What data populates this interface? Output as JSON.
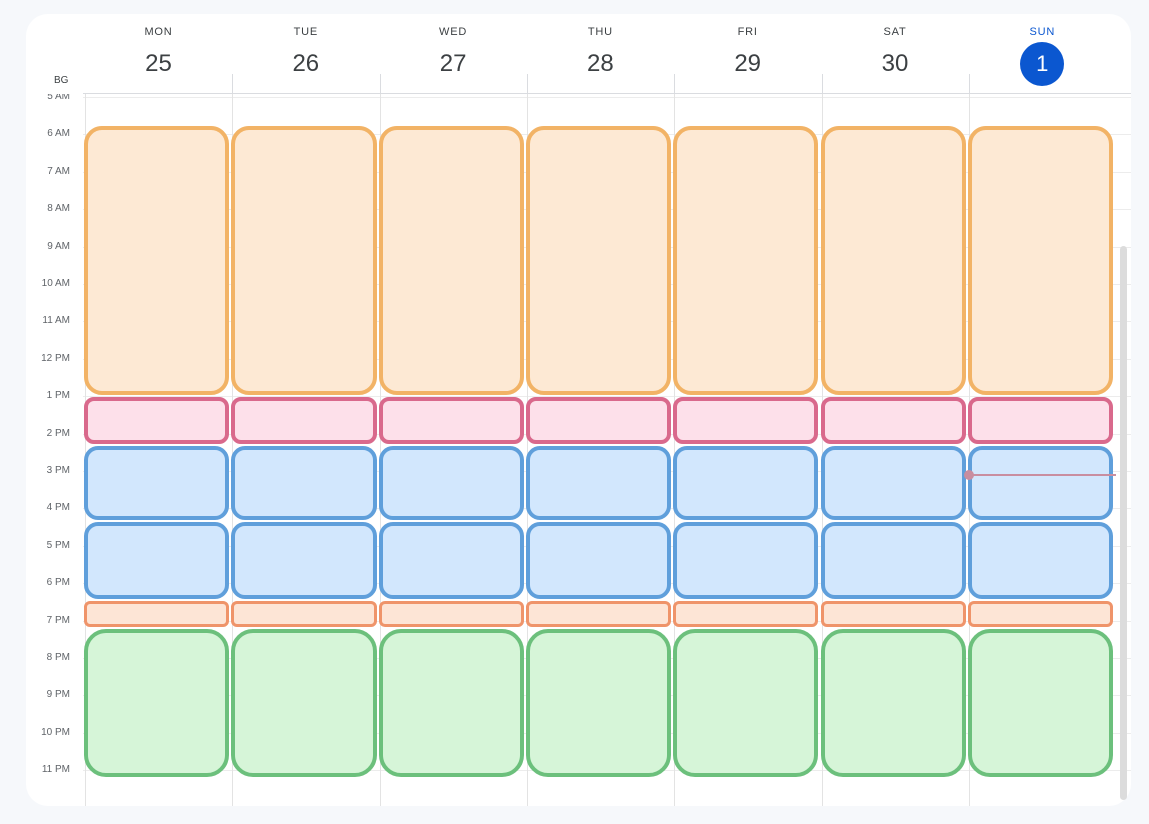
{
  "timezone_label": "BG",
  "days": [
    {
      "name": "MON",
      "number": "25",
      "today": false
    },
    {
      "name": "TUE",
      "number": "26",
      "today": false
    },
    {
      "name": "WED",
      "number": "27",
      "today": false
    },
    {
      "name": "THU",
      "number": "28",
      "today": false
    },
    {
      "name": "FRI",
      "number": "29",
      "today": false
    },
    {
      "name": "SAT",
      "number": "30",
      "today": false
    },
    {
      "name": "SUN",
      "number": "1",
      "today": true
    }
  ],
  "hours": [
    "5 AM",
    "6 AM",
    "7 AM",
    "8 AM",
    "9 AM",
    "10 AM",
    "11 AM",
    "12 PM",
    "1 PM",
    "2 PM",
    "3 PM",
    "4 PM",
    "5 PM",
    "6 PM",
    "7 PM",
    "8 PM",
    "9 PM",
    "10 PM",
    "11 PM"
  ],
  "event_blocks": [
    {
      "color": "orange",
      "start_hour": 5.75,
      "end_hour": 13.0
    },
    {
      "color": "pink",
      "start_hour": 13.0,
      "end_hour": 14.3
    },
    {
      "color": "blue",
      "start_hour": 14.3,
      "end_hour": 16.35
    },
    {
      "color": "blue",
      "start_hour": 16.35,
      "end_hour": 18.45
    },
    {
      "color": "peach",
      "start_hour": 18.45,
      "end_hour": 19.2
    },
    {
      "color": "green",
      "start_hour": 19.2,
      "end_hour": 23.2
    }
  ],
  "colors": {
    "today_accent": "#0b57d0",
    "orange": "#f2b366",
    "pink": "#d9698c",
    "blue": "#5f9fdb",
    "peach": "#ef946a",
    "green": "#6cc07c",
    "now_indicator": "#c98ea0"
  },
  "current_time": {
    "day_index": 6,
    "hour": 15.1
  }
}
